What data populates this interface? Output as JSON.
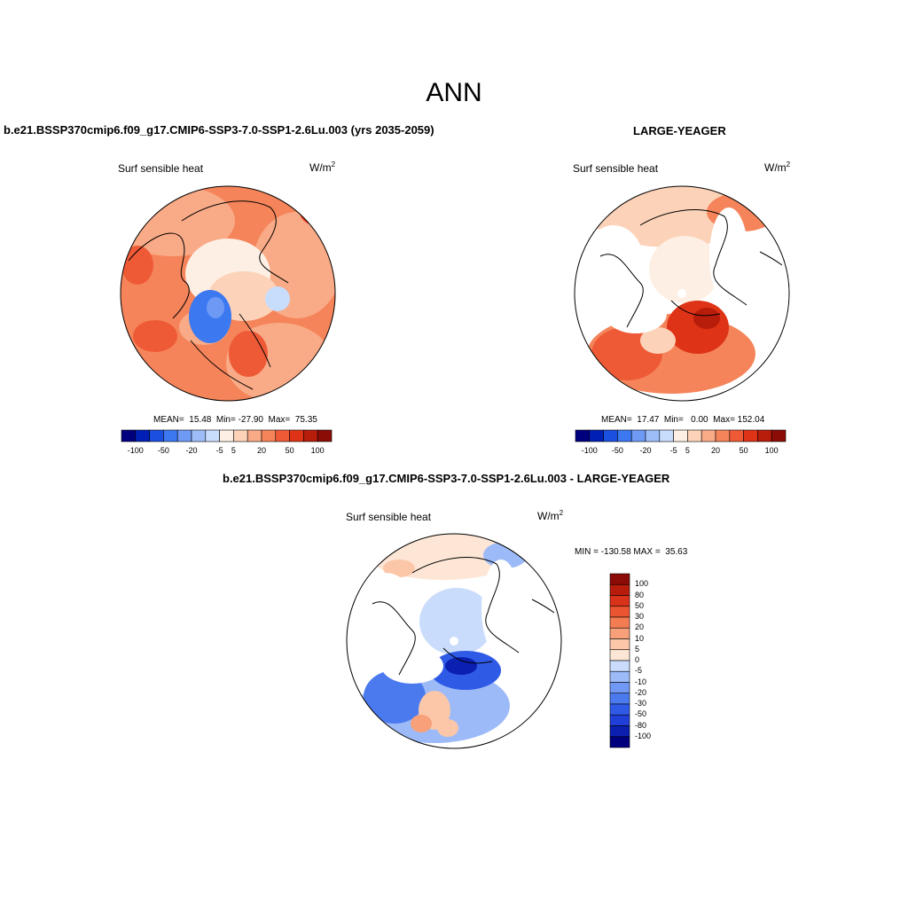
{
  "page": {
    "title": "ANN"
  },
  "panels": [
    {
      "id": "test",
      "case_title": "b.e21.BSSP370cmip6.f09_g17.CMIP6-SSP3-7.0-SSP1-2.6Lu.003 (yrs 2035-2059)",
      "variable": "Surf sensible heat",
      "units_base": "W/m",
      "units_exp": "2",
      "stats": "MEAN=  15.48  Min= -27.90  Max=  75.35"
    },
    {
      "id": "obs",
      "case_title": "LARGE-YEAGER",
      "variable": "Surf sensible heat",
      "units_base": "W/m",
      "units_exp": "2",
      "stats": "MEAN=  17.47  Min=   0.00  Max= 152.04"
    },
    {
      "id": "diff",
      "case_title": "b.e21.BSSP370cmip6.f09_g17.CMIP6-SSP3-7.0-SSP1-2.6Lu.003 - LARGE-YEAGER",
      "variable": "Surf sensible heat",
      "units_base": "W/m",
      "units_exp": "2",
      "stats": "MIN = -130.58 MAX =  35.63"
    }
  ],
  "horizontal_colorbar": {
    "colors": [
      "#00007f",
      "#0020b5",
      "#1a4fe0",
      "#3c78f0",
      "#6e9af5",
      "#9dbdf9",
      "#c8dcfb",
      "#fdefe3",
      "#fcd2b8",
      "#f9aa86",
      "#f5845a",
      "#ee5a36",
      "#de3316",
      "#b81c0b",
      "#8b0c06"
    ],
    "tick_labels": [
      "-100",
      "-50",
      "-20",
      "-5",
      "5",
      "20",
      "50",
      "100"
    ]
  },
  "vertical_colorbar": {
    "colors": [
      "#00007f",
      "#0b1fb0",
      "#1f3fd8",
      "#2f5ae6",
      "#4b7aef",
      "#7098f4",
      "#9dbaf8",
      "#c9dcfb",
      "#fde6d5",
      "#fbc7a8",
      "#f7a07a",
      "#f37c52",
      "#ea5430",
      "#d8321a",
      "#b71c0c",
      "#8b0c06"
    ],
    "tick_labels": [
      "100",
      "80",
      "50",
      "30",
      "20",
      "10",
      "5",
      "0",
      "-5",
      "-10",
      "-20",
      "-30",
      "-50",
      "-80",
      "-100"
    ]
  }
}
